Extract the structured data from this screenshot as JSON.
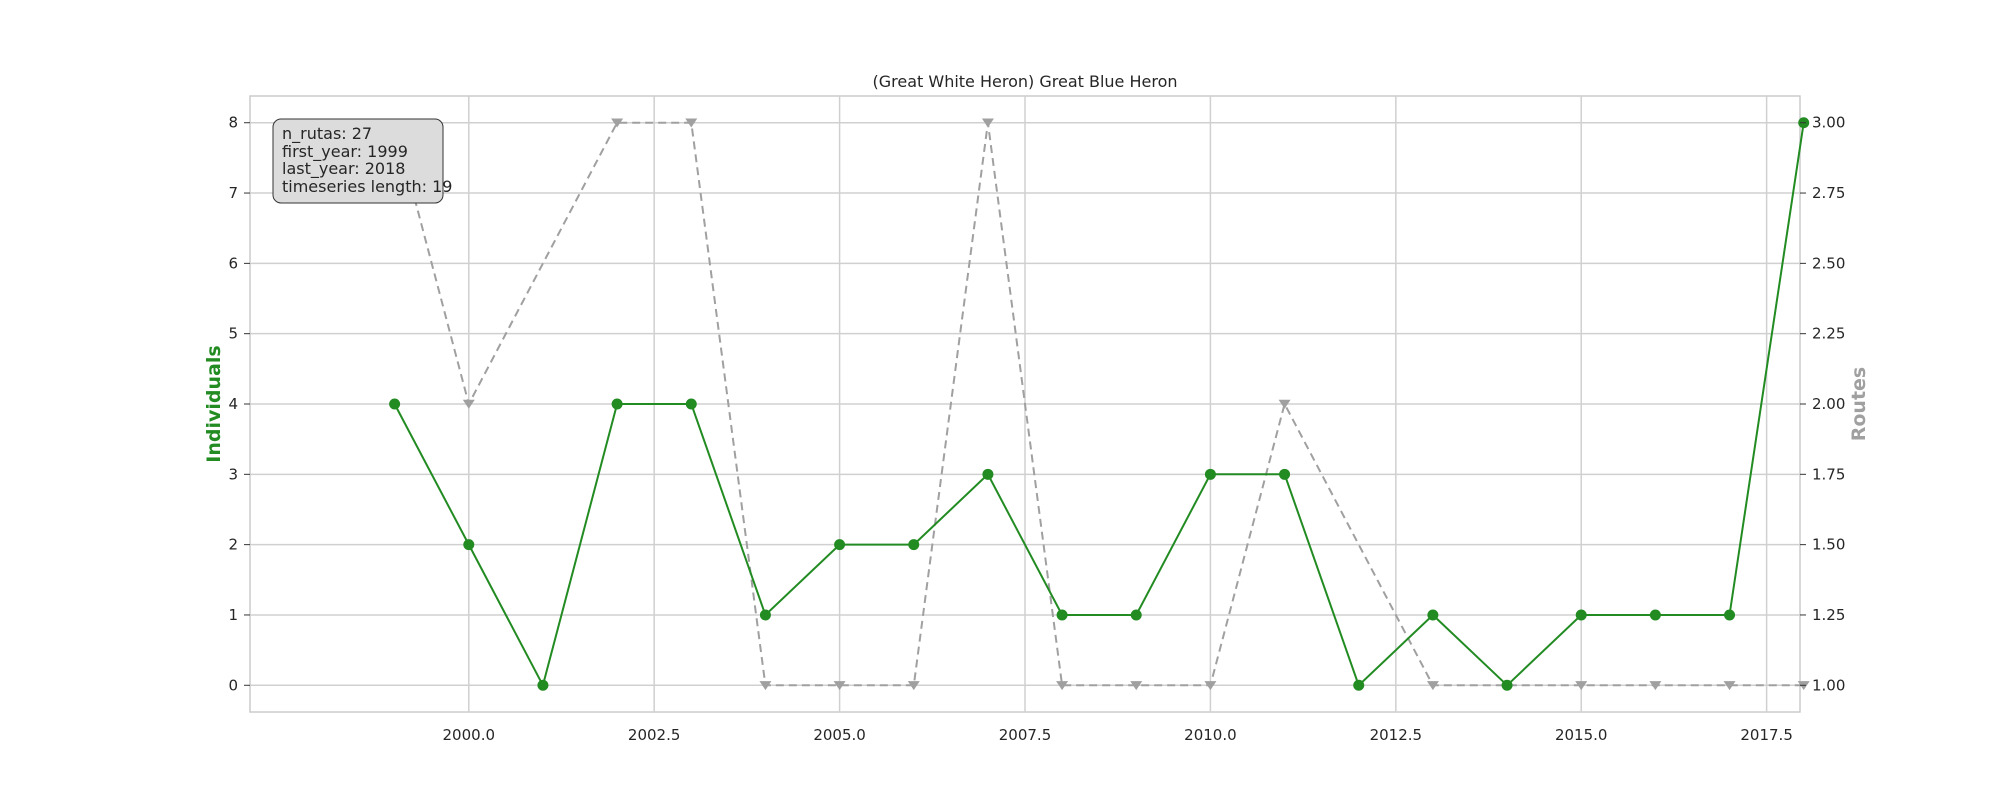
{
  "chart_data": {
    "type": "line",
    "title": "(Great White Heron) Great Blue Heron",
    "grid": true,
    "x": [
      1999,
      2000,
      2001,
      2002,
      2003,
      2004,
      2005,
      2006,
      2007,
      2008,
      2009,
      2010,
      2011,
      2012,
      2013,
      2014,
      2015,
      2016,
      2017,
      2018
    ],
    "x_ticks": [
      2000.0,
      2002.5,
      2005.0,
      2007.5,
      2010.0,
      2012.5,
      2015.0,
      2017.5
    ],
    "x_tick_labels": [
      "2000.0",
      "2002.5",
      "2005.0",
      "2007.5",
      "2010.0",
      "2012.5",
      "2015.0",
      "2017.5"
    ],
    "xlim": [
      1997.05,
      2017.95
    ],
    "y_left": {
      "label": "Individuals",
      "color": "#228b22",
      "ylim": [
        -0.38,
        8.38
      ],
      "ticks": [
        0,
        1,
        2,
        3,
        4,
        5,
        6,
        7,
        8
      ],
      "tick_labels": [
        "0",
        "1",
        "2",
        "3",
        "4",
        "5",
        "6",
        "7",
        "8"
      ]
    },
    "y_right": {
      "label": "Routes",
      "color": "#a0a0a0",
      "ylim": [
        0.905,
        3.095
      ],
      "ticks": [
        1.0,
        1.25,
        1.5,
        1.75,
        2.0,
        2.25,
        2.5,
        2.75,
        3.0
      ],
      "tick_labels": [
        "1.00",
        "1.25",
        "1.50",
        "1.75",
        "2.00",
        "2.25",
        "2.50",
        "2.75",
        "3.00"
      ]
    },
    "series": [
      {
        "axis": "left",
        "color": "#228b22",
        "marker": "circle",
        "linestyle": "solid",
        "values": [
          4,
          2,
          0,
          4,
          4,
          1,
          2,
          2,
          3,
          1,
          1,
          3,
          3,
          0,
          1,
          0,
          1,
          1,
          1,
          8
        ]
      },
      {
        "axis": "right",
        "color": "#a0a0a0",
        "marker": "triangle-down",
        "linestyle": "dashed",
        "values": [
          3,
          2,
          null,
          3,
          3,
          1,
          1,
          1,
          3,
          1,
          1,
          1,
          2,
          null,
          1,
          null,
          1,
          1,
          1,
          1
        ]
      }
    ],
    "annotation": {
      "lines": [
        "n_rutas: 27",
        "first_year: 1999",
        "last_year: 2018",
        "timeseries length: 19"
      ]
    }
  }
}
